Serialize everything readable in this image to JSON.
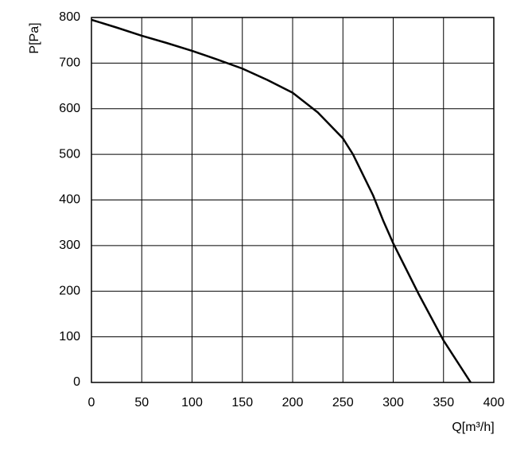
{
  "chart_data": {
    "type": "line",
    "x_label": "Q[m³/h]",
    "y_label": "P[Pa]",
    "x": [
      0,
      25,
      50,
      75,
      100,
      125,
      150,
      175,
      200,
      225,
      250,
      260,
      270,
      280,
      290,
      300,
      325,
      350,
      377
    ],
    "series": [
      {
        "name": "P",
        "color": "#000000",
        "values": [
          795,
          778,
          760,
          744,
          727,
          708,
          688,
          663,
          635,
          592,
          535,
          500,
          455,
          410,
          355,
          305,
          195,
          92,
          0
        ]
      }
    ],
    "xlim": [
      0,
      400
    ],
    "xticks": [
      0,
      50,
      100,
      150,
      200,
      250,
      300,
      350,
      400
    ],
    "ylim": [
      0,
      800
    ],
    "yticks": [
      0,
      100,
      200,
      300,
      400,
      500,
      600,
      700,
      800
    ],
    "grid": true
  }
}
